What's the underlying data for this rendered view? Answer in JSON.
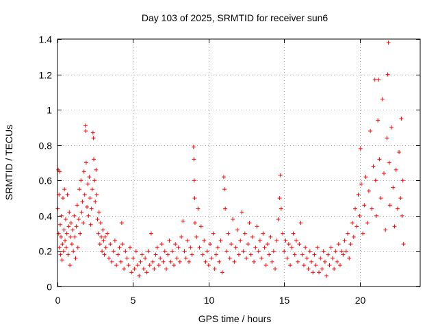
{
  "chart_data": {
    "type": "scatter",
    "title": "Day 103 of 2025, SRMTID for receiver sun6",
    "xlabel": "GPS time / hours",
    "ylabel": "SRMTID / TECUs",
    "xlim": [
      0,
      24
    ],
    "ylim": [
      0,
      1.4
    ],
    "xticks": [
      0,
      5,
      10,
      15,
      20
    ],
    "xtick_labels": [
      "0",
      "5",
      "10",
      "15",
      "20"
    ],
    "yticks": [
      0,
      0.2,
      0.4,
      0.6,
      0.8,
      1,
      1.2,
      1.4
    ],
    "ytick_labels": [
      "0",
      "0.2",
      "0.4",
      "0.6",
      "0.8",
      "1",
      "1.2",
      "1.4"
    ],
    "grid": true,
    "marker": "plus",
    "color": "#ff0000",
    "series": [
      {
        "name": "SRMTID",
        "points": [
          [
            0.02,
            0.44
          ],
          [
            0.05,
            0.66
          ],
          [
            0.08,
            0.3
          ],
          [
            0.1,
            0.52
          ],
          [
            0.12,
            0.22
          ],
          [
            0.15,
            0.65
          ],
          [
            0.18,
            0.35
          ],
          [
            0.2,
            0.18
          ],
          [
            0.23,
            0.28
          ],
          [
            0.26,
            0.4
          ],
          [
            0.3,
            0.15
          ],
          [
            0.33,
            0.24
          ],
          [
            0.36,
            0.5
          ],
          [
            0.4,
            0.2
          ],
          [
            0.43,
            0.32
          ],
          [
            0.46,
            0.55
          ],
          [
            0.5,
            0.26
          ],
          [
            0.54,
            0.38
          ],
          [
            0.58,
            0.22
          ],
          [
            0.62,
            0.3
          ],
          [
            0.66,
            0.52
          ],
          [
            0.7,
            0.18
          ],
          [
            0.74,
            0.34
          ],
          [
            0.78,
            0.42
          ],
          [
            0.82,
            0.12
          ],
          [
            0.86,
            0.28
          ],
          [
            0.9,
            0.36
          ],
          [
            0.95,
            0.24
          ],
          [
            1.0,
            0.32
          ],
          [
            1.05,
            0.2
          ],
          [
            1.1,
            0.4
          ],
          [
            1.15,
            0.28
          ],
          [
            1.2,
            0.16
          ],
          [
            1.25,
            0.34
          ],
          [
            1.3,
            0.46
          ],
          [
            1.35,
            0.22
          ],
          [
            1.4,
            0.38
          ],
          [
            1.45,
            0.55
          ],
          [
            1.5,
            0.3
          ],
          [
            1.55,
            0.6
          ],
          [
            1.6,
            0.42
          ],
          [
            1.65,
            0.48
          ],
          [
            1.7,
            0.36
          ],
          [
            1.75,
            0.65
          ],
          [
            1.8,
            0.52
          ],
          [
            1.85,
            0.91
          ],
          [
            1.88,
            0.88
          ],
          [
            1.9,
            0.7
          ],
          [
            1.95,
            0.45
          ],
          [
            2.0,
            0.58
          ],
          [
            2.05,
            0.4
          ],
          [
            2.1,
            0.62
          ],
          [
            2.15,
            0.5
          ],
          [
            2.2,
            0.35
          ],
          [
            2.25,
            0.44
          ],
          [
            2.3,
            0.55
          ],
          [
            2.35,
            0.87
          ],
          [
            2.38,
            0.84
          ],
          [
            2.4,
            0.72
          ],
          [
            2.45,
            0.6
          ],
          [
            2.5,
            0.48
          ],
          [
            2.55,
            0.66
          ],
          [
            2.6,
            0.52
          ],
          [
            2.65,
            0.38
          ],
          [
            2.7,
            0.3
          ],
          [
            2.75,
            0.42
          ],
          [
            2.8,
            0.24
          ],
          [
            2.85,
            0.36
          ],
          [
            2.9,
            0.28
          ],
          [
            2.95,
            0.2
          ],
          [
            3.0,
            0.32
          ],
          [
            3.05,
            0.26
          ],
          [
            3.1,
            0.18
          ],
          [
            3.15,
            0.28
          ],
          [
            3.2,
            0.22
          ],
          [
            3.3,
            0.3
          ],
          [
            3.4,
            0.16
          ],
          [
            3.5,
            0.24
          ],
          [
            3.6,
            0.14
          ],
          [
            3.7,
            0.2
          ],
          [
            3.8,
            0.26
          ],
          [
            3.9,
            0.12
          ],
          [
            4.0,
            0.18
          ],
          [
            4.1,
            0.22
          ],
          [
            4.2,
            0.14
          ],
          [
            4.25,
            0.36
          ],
          [
            4.3,
            0.24
          ],
          [
            4.4,
            0.1
          ],
          [
            4.5,
            0.2
          ],
          [
            4.6,
            0.16
          ],
          [
            4.7,
            0.12
          ],
          [
            4.8,
            0.22
          ],
          [
            4.9,
            0.08
          ],
          [
            5.0,
            0.16
          ],
          [
            5.1,
            0.1
          ],
          [
            5.2,
            0.2
          ],
          [
            5.3,
            0.12
          ],
          [
            5.4,
            0.06
          ],
          [
            5.5,
            0.14
          ],
          [
            5.6,
            0.18
          ],
          [
            5.7,
            0.1
          ],
          [
            5.8,
            0.16
          ],
          [
            5.9,
            0.08
          ],
          [
            6.0,
            0.2
          ],
          [
            6.1,
            0.12
          ],
          [
            6.2,
            0.3
          ],
          [
            6.3,
            0.14
          ],
          [
            6.4,
            0.1
          ],
          [
            6.5,
            0.18
          ],
          [
            6.6,
            0.22
          ],
          [
            6.7,
            0.12
          ],
          [
            6.8,
            0.16
          ],
          [
            6.9,
            0.24
          ],
          [
            7.0,
            0.14
          ],
          [
            7.1,
            0.2
          ],
          [
            7.2,
            0.1
          ],
          [
            7.3,
            0.18
          ],
          [
            7.4,
            0.26
          ],
          [
            7.5,
            0.14
          ],
          [
            7.6,
            0.2
          ],
          [
            7.7,
            0.12
          ],
          [
            7.8,
            0.24
          ],
          [
            7.9,
            0.16
          ],
          [
            8.0,
            0.22
          ],
          [
            8.1,
            0.14
          ],
          [
            8.2,
            0.28
          ],
          [
            8.3,
            0.37
          ],
          [
            8.4,
            0.2
          ],
          [
            8.5,
            0.16
          ],
          [
            8.6,
            0.26
          ],
          [
            8.7,
            0.14
          ],
          [
            8.8,
            0.22
          ],
          [
            8.9,
            0.18
          ],
          [
            9.0,
            0.79
          ],
          [
            9.03,
            0.72
          ],
          [
            9.05,
            0.6
          ],
          [
            9.08,
            0.5
          ],
          [
            9.1,
            0.36
          ],
          [
            9.2,
            0.28
          ],
          [
            9.3,
            0.44
          ],
          [
            9.4,
            0.22
          ],
          [
            9.5,
            0.34
          ],
          [
            9.6,
            0.18
          ],
          [
            9.7,
            0.26
          ],
          [
            9.8,
            0.14
          ],
          [
            9.9,
            0.2
          ],
          [
            10.0,
            0.12
          ],
          [
            10.1,
            0.24
          ],
          [
            10.2,
            0.16
          ],
          [
            10.3,
            0.3
          ],
          [
            10.4,
            0.1
          ],
          [
            10.5,
            0.18
          ],
          [
            10.6,
            0.22
          ],
          [
            10.7,
            0.14
          ],
          [
            10.8,
            0.26
          ],
          [
            10.9,
            0.08
          ],
          [
            11.0,
            0.62
          ],
          [
            11.05,
            0.55
          ],
          [
            11.1,
            0.44
          ],
          [
            11.2,
            0.2
          ],
          [
            11.3,
            0.3
          ],
          [
            11.4,
            0.16
          ],
          [
            11.5,
            0.24
          ],
          [
            11.6,
            0.38
          ],
          [
            11.7,
            0.14
          ],
          [
            11.8,
            0.22
          ],
          [
            11.9,
            0.32
          ],
          [
            12.0,
            0.18
          ],
          [
            12.1,
            0.26
          ],
          [
            12.2,
            0.42
          ],
          [
            12.3,
            0.2
          ],
          [
            12.4,
            0.3
          ],
          [
            12.5,
            0.16
          ],
          [
            12.6,
            0.24
          ],
          [
            12.7,
            0.36
          ],
          [
            12.8,
            0.18
          ],
          [
            12.9,
            0.28
          ],
          [
            13.0,
            0.14
          ],
          [
            13.1,
            0.22
          ],
          [
            13.2,
            0.34
          ],
          [
            13.3,
            0.2
          ],
          [
            13.4,
            0.26
          ],
          [
            13.5,
            0.16
          ],
          [
            13.6,
            0.3
          ],
          [
            13.7,
            0.22
          ],
          [
            13.8,
            0.12
          ],
          [
            13.9,
            0.24
          ],
          [
            14.0,
            0.18
          ],
          [
            14.1,
            0.28
          ],
          [
            14.2,
            0.14
          ],
          [
            14.3,
            0.2
          ],
          [
            14.4,
            0.1
          ],
          [
            14.5,
            0.26
          ],
          [
            14.6,
            0.38
          ],
          [
            14.7,
            0.5
          ],
          [
            14.75,
            0.63
          ],
          [
            14.8,
            0.44
          ],
          [
            14.9,
            0.3
          ],
          [
            15.0,
            0.2
          ],
          [
            15.1,
            0.26
          ],
          [
            15.2,
            0.16
          ],
          [
            15.3,
            0.24
          ],
          [
            15.4,
            0.12
          ],
          [
            15.5,
            0.22
          ],
          [
            15.6,
            0.3
          ],
          [
            15.7,
            0.18
          ],
          [
            15.8,
            0.26
          ],
          [
            15.9,
            0.14
          ],
          [
            16.0,
            0.24
          ],
          [
            16.1,
            0.36
          ],
          [
            16.2,
            0.18
          ],
          [
            16.3,
            0.12
          ],
          [
            16.4,
            0.22
          ],
          [
            16.5,
            0.16
          ],
          [
            16.6,
            0.1
          ],
          [
            16.7,
            0.2
          ],
          [
            16.8,
            0.14
          ],
          [
            16.9,
            0.08
          ],
          [
            17.0,
            0.18
          ],
          [
            17.1,
            0.12
          ],
          [
            17.2,
            0.22
          ],
          [
            17.3,
            0.08
          ],
          [
            17.4,
            0.16
          ],
          [
            17.5,
            0.1
          ],
          [
            17.6,
            0.2
          ],
          [
            17.7,
            0.14
          ],
          [
            17.8,
            0.06
          ],
          [
            17.9,
            0.18
          ],
          [
            18.0,
            0.12
          ],
          [
            18.1,
            0.22
          ],
          [
            18.2,
            0.16
          ],
          [
            18.3,
            0.1
          ],
          [
            18.4,
            0.2
          ],
          [
            18.5,
            0.14
          ],
          [
            18.6,
            0.24
          ],
          [
            18.7,
            0.12
          ],
          [
            18.8,
            0.2
          ],
          [
            18.9,
            0.18
          ],
          [
            19.0,
            0.26
          ],
          [
            19.1,
            0.2
          ],
          [
            19.2,
            0.3
          ],
          [
            19.3,
            0.16
          ],
          [
            19.4,
            0.24
          ],
          [
            19.5,
            0.36
          ],
          [
            19.6,
            0.28
          ],
          [
            19.7,
            0.44
          ],
          [
            19.8,
            0.34
          ],
          [
            19.9,
            0.52
          ],
          [
            20.0,
            0.4
          ],
          [
            20.05,
            0.78
          ],
          [
            20.1,
            0.58
          ],
          [
            20.2,
            0.3
          ],
          [
            20.3,
            0.46
          ],
          [
            20.4,
            0.62
          ],
          [
            20.5,
            0.36
          ],
          [
            20.6,
            0.54
          ],
          [
            20.7,
            0.88
          ],
          [
            20.8,
            0.44
          ],
          [
            20.9,
            0.68
          ],
          [
            21.0,
            1.17
          ],
          [
            21.05,
            0.6
          ],
          [
            21.1,
            0.4
          ],
          [
            21.2,
            0.94
          ],
          [
            21.25,
            1.17
          ],
          [
            21.3,
            0.72
          ],
          [
            21.4,
            0.5
          ],
          [
            21.5,
            1.06
          ],
          [
            21.6,
            0.64
          ],
          [
            21.7,
            0.32
          ],
          [
            21.8,
            0.84
          ],
          [
            21.85,
            1.2
          ],
          [
            21.9,
            1.38
          ],
          [
            21.95,
            0.7
          ],
          [
            22.0,
            0.46
          ],
          [
            22.1,
            0.9
          ],
          [
            22.2,
            0.56
          ],
          [
            22.3,
            0.34
          ],
          [
            22.4,
            0.66
          ],
          [
            22.5,
            0.44
          ],
          [
            22.6,
            0.76
          ],
          [
            22.7,
            0.5
          ],
          [
            22.75,
            0.95
          ],
          [
            22.8,
            0.4
          ],
          [
            22.85,
            0.6
          ],
          [
            22.9,
            0.24
          ]
        ]
      }
    ]
  }
}
